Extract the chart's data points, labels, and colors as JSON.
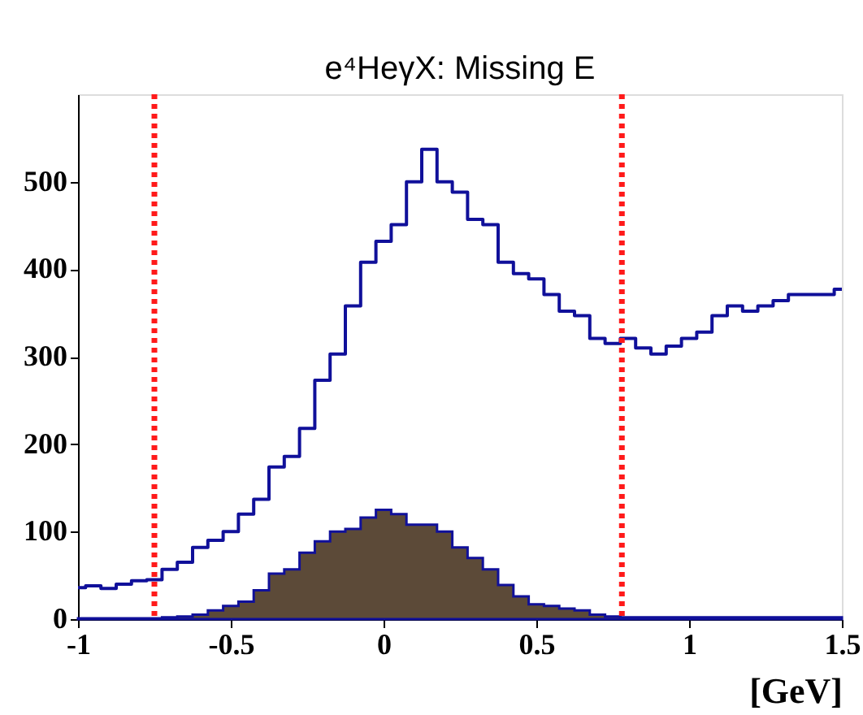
{
  "chart_data": {
    "type": "step",
    "title": "e⁴HeγX: Missing E",
    "xlabel": "[GeV]",
    "xlim": [
      -1,
      1.5
    ],
    "xticks": [
      -1,
      -0.5,
      0,
      0.5,
      1,
      1.5
    ],
    "ylim": [
      0,
      600
    ],
    "yticks": [
      0,
      100,
      200,
      300,
      400,
      500
    ],
    "grid": false,
    "series": [
      {
        "color": "#10109a",
        "x": [
          -1,
          -0.95,
          -0.9,
          -0.85,
          -0.8,
          -0.75,
          -0.7,
          -0.65,
          -0.6,
          -0.55,
          -0.5,
          -0.45,
          -0.4,
          -0.35,
          -0.3,
          -0.25,
          -0.2,
          -0.15,
          -0.1,
          -0.05,
          0,
          0.05,
          0.1,
          0.15,
          0.2,
          0.25,
          0.3,
          0.35,
          0.4,
          0.45,
          0.5,
          0.55,
          0.6,
          0.65,
          0.7,
          0.75,
          0.8,
          0.85,
          0.9,
          0.95,
          1,
          1.05,
          1.1,
          1.15,
          1.2,
          1.25,
          1.3,
          1.35,
          1.4,
          1.45,
          1.5
        ],
        "values": [
          36,
          38,
          35,
          40,
          44,
          45,
          57,
          65,
          82,
          90,
          100,
          120,
          137,
          174,
          186,
          218,
          273,
          303,
          358,
          408,
          432,
          451,
          500,
          537,
          500,
          488,
          457,
          451,
          408,
          395,
          389,
          371,
          352,
          347,
          321,
          315,
          321,
          310,
          303,
          312,
          321,
          328,
          347,
          358,
          352,
          358,
          364,
          371,
          371,
          371,
          377
        ]
      },
      {
        "type": "area",
        "color": "#5c4a38",
        "x": [
          -1,
          -0.95,
          -0.9,
          -0.85,
          -0.8,
          -0.75,
          -0.7,
          -0.65,
          -0.6,
          -0.55,
          -0.5,
          -0.45,
          -0.4,
          -0.35,
          -0.3,
          -0.25,
          -0.2,
          -0.15,
          -0.1,
          -0.05,
          0,
          0.05,
          0.1,
          0.15,
          0.2,
          0.25,
          0.3,
          0.35,
          0.4,
          0.45,
          0.5,
          0.55,
          0.6,
          0.65,
          0.7,
          0.75,
          0.8,
          0.85,
          0.9,
          0.95,
          1,
          1.05,
          1.1,
          1.15,
          1.2,
          1.25,
          1.3,
          1.35,
          1.4,
          1.45,
          1.5
        ],
        "values": [
          1,
          1,
          1,
          1,
          1,
          1,
          2,
          3,
          5,
          10,
          15,
          20,
          33,
          52,
          57,
          76,
          89,
          100,
          103,
          116,
          125,
          120,
          108,
          108,
          100,
          82,
          70,
          57,
          39,
          26,
          17,
          15,
          12,
          10,
          5,
          3,
          2,
          2,
          2,
          2,
          2,
          2,
          2,
          2,
          2,
          2,
          2,
          2,
          2,
          2,
          2
        ]
      }
    ],
    "ref_lines": [
      {
        "axis": "x",
        "value": -0.75,
        "color": "#ff1a1a",
        "line_style": "dotted"
      },
      {
        "axis": "x",
        "value": 0.78,
        "color": "#ff1a1a",
        "line_style": "dotted"
      }
    ]
  }
}
